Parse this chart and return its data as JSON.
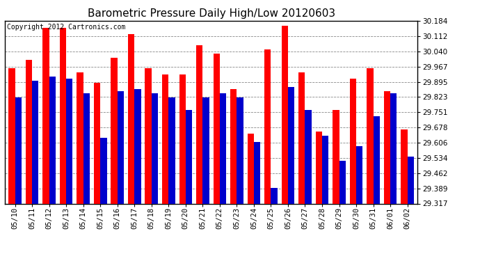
{
  "title": "Barometric Pressure Daily High/Low 20120603",
  "copyright": "Copyright 2012 Cartronics.com",
  "dates": [
    "05/10",
    "05/11",
    "05/12",
    "05/13",
    "05/14",
    "05/15",
    "05/16",
    "05/17",
    "05/18",
    "05/19",
    "05/20",
    "05/21",
    "05/22",
    "05/23",
    "05/24",
    "05/25",
    "05/26",
    "05/27",
    "05/28",
    "05/29",
    "05/30",
    "05/31",
    "06/01",
    "06/02"
  ],
  "highs": [
    29.96,
    30.0,
    30.15,
    30.15,
    29.94,
    29.89,
    30.01,
    30.12,
    29.96,
    29.93,
    29.93,
    30.07,
    30.03,
    29.86,
    29.65,
    30.05,
    30.16,
    29.94,
    29.66,
    29.76,
    29.91,
    29.96,
    29.85,
    29.67
  ],
  "lows": [
    29.82,
    29.9,
    29.92,
    29.91,
    29.84,
    29.63,
    29.85,
    29.86,
    29.84,
    29.82,
    29.76,
    29.82,
    29.84,
    29.82,
    29.61,
    29.39,
    29.87,
    29.76,
    29.64,
    29.52,
    29.59,
    29.73,
    29.84,
    29.54
  ],
  "high_color": "#ff0000",
  "low_color": "#0000cc",
  "background_color": "#ffffff",
  "grid_color": "#888888",
  "ymin": 29.317,
  "ymax": 30.184,
  "yticks": [
    29.317,
    29.389,
    29.462,
    29.534,
    29.606,
    29.678,
    29.751,
    29.823,
    29.895,
    29.967,
    30.04,
    30.112,
    30.184
  ],
  "title_fontsize": 11,
  "copyright_fontsize": 7,
  "bar_width": 0.38
}
